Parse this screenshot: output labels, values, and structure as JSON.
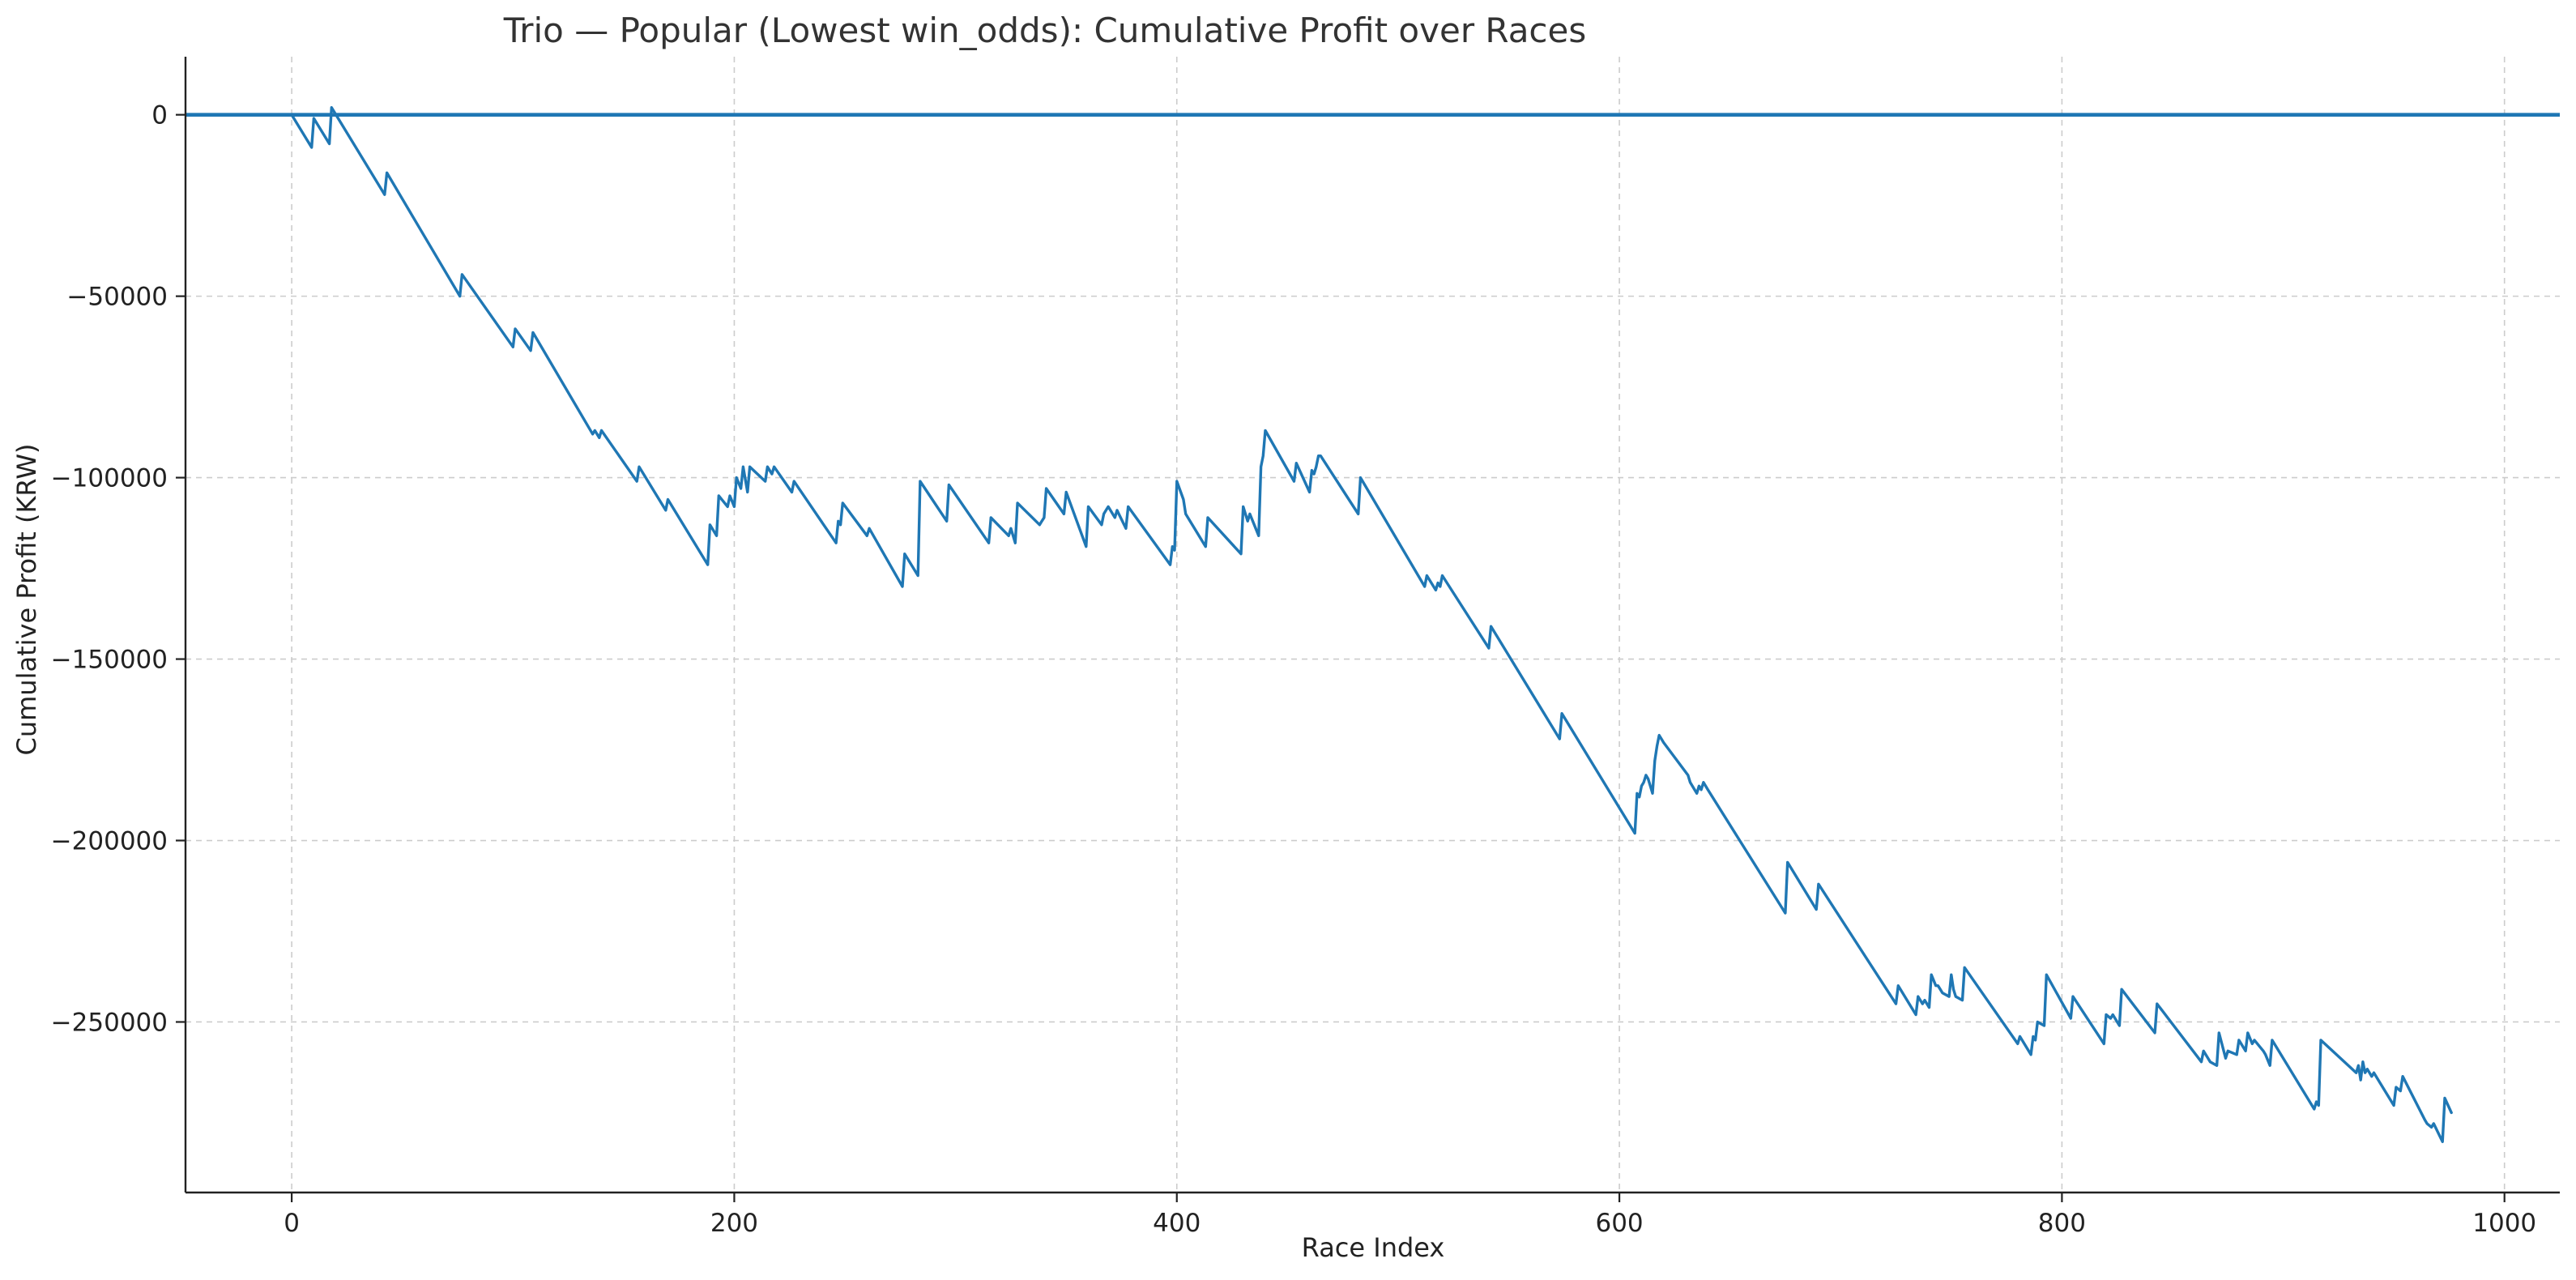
{
  "chart_data": {
    "type": "line",
    "title": "Trio — Popular (Lowest win_odds): Cumulative Profit over Races",
    "xlabel": "Race Index",
    "ylabel": "Cumulative Profit (KRW)",
    "xlim": [
      -48,
      1025
    ],
    "ylim": [
      -297000,
      16000
    ],
    "xticks": [
      0,
      200,
      400,
      600,
      800,
      1000
    ],
    "yticks": [
      0,
      -50000,
      -100000,
      -150000,
      -200000,
      -250000
    ],
    "grid": true,
    "legend": "none",
    "line_color": "#1f77b4",
    "reference_line": {
      "y": 0,
      "color": "#1f77b4"
    },
    "series": [
      {
        "x": [
          0,
          9,
          10,
          17,
          18,
          42,
          43,
          76,
          77,
          100,
          101,
          108,
          109,
          136,
          137,
          139,
          140,
          156,
          157,
          169,
          170,
          188,
          189,
          192,
          193,
          197,
          198,
          200,
          201,
          203,
          204,
          206,
          207,
          214,
          215,
          217,
          218,
          226,
          227,
          246,
          247,
          248,
          249,
          260,
          261,
          276,
          277,
          283,
          284,
          296,
          297,
          315,
          316,
          324,
          325,
          327,
          328,
          338,
          339,
          340,
          341,
          349,
          350,
          359,
          360,
          366,
          367,
          368,
          369,
          372,
          373,
          377,
          378,
          397,
          398,
          399,
          400,
          403,
          404,
          413,
          414,
          429,
          430,
          432,
          433,
          437,
          438,
          439,
          440,
          453,
          454,
          460,
          461,
          462,
          463,
          464,
          465,
          482,
          483,
          512,
          513,
          517,
          518,
          519,
          520,
          541,
          542,
          573,
          574,
          607,
          608,
          609,
          610,
          611,
          612,
          613,
          614,
          615,
          616,
          617,
          618,
          619,
          620,
          631,
          632,
          633,
          634,
          635,
          636,
          637,
          638,
          639,
          640,
          675,
          676,
          689,
          690,
          725,
          726,
          734,
          735,
          737,
          738,
          740,
          741,
          743,
          744,
          745,
          746,
          749,
          750,
          751,
          752,
          755,
          756,
          780,
          781,
          786,
          787,
          788,
          789,
          792,
          793,
          804,
          805,
          819,
          820,
          822,
          823,
          826,
          827,
          842,
          843,
          863,
          864,
          866,
          867,
          870,
          871,
          874,
          875,
          879,
          880,
          883,
          884,
          886,
          887,
          891,
          892,
          894,
          895,
          914,
          915,
          916,
          917,
          933,
          934,
          935,
          936,
          937,
          938,
          940,
          941,
          950,
          951,
          953,
          954,
          964,
          965,
          967,
          968,
          972,
          973,
          976
        ],
        "y": [
          0,
          -9000,
          -1000,
          -8000,
          2000,
          -22000,
          -16000,
          -50000,
          -44000,
          -64000,
          -59000,
          -65000,
          -60000,
          -88000,
          -87000,
          -89000,
          -87000,
          -101000,
          -97000,
          -109000,
          -106000,
          -124000,
          -113000,
          -116000,
          -105000,
          -108000,
          -105000,
          -108000,
          -100000,
          -103000,
          -97000,
          -104000,
          -97000,
          -101000,
          -97000,
          -99000,
          -97000,
          -104000,
          -101000,
          -118000,
          -112000,
          -113000,
          -107000,
          -116000,
          -114000,
          -130000,
          -121000,
          -127000,
          -101000,
          -112000,
          -102000,
          -118000,
          -111000,
          -116000,
          -114000,
          -118000,
          -107000,
          -113000,
          -112000,
          -111000,
          -103000,
          -110000,
          -104000,
          -119000,
          -108000,
          -113000,
          -110000,
          -109000,
          -108000,
          -111000,
          -109000,
          -114000,
          -108000,
          -124000,
          -119000,
          -120000,
          -101000,
          -106000,
          -110000,
          -119000,
          -111000,
          -121000,
          -108000,
          -112000,
          -110000,
          -116000,
          -97000,
          -94000,
          -87000,
          -101000,
          -96000,
          -104000,
          -98000,
          -99000,
          -97000,
          -94000,
          -94000,
          -110000,
          -100000,
          -130000,
          -127000,
          -131000,
          -129000,
          -130000,
          -127000,
          -147000,
          -141000,
          -172000,
          -165000,
          -198000,
          -187000,
          -188000,
          -185000,
          -184000,
          -182000,
          -183000,
          -185000,
          -187000,
          -178000,
          -174000,
          -171000,
          -172000,
          -173000,
          -182000,
          -184000,
          -185000,
          -186000,
          -187000,
          -185000,
          -186000,
          -184000,
          -185000,
          -186000,
          -220000,
          -206000,
          -219000,
          -212000,
          -245000,
          -240000,
          -248000,
          -243000,
          -245000,
          -244000,
          -246000,
          -237000,
          -240000,
          -240000,
          -241000,
          -242000,
          -243000,
          -237000,
          -241000,
          -243000,
          -244000,
          -235000,
          -256000,
          -254000,
          -259000,
          -254000,
          -255000,
          -250000,
          -251000,
          -237000,
          -249000,
          -243000,
          -256000,
          -248000,
          -249000,
          -248000,
          -251000,
          -241000,
          -253000,
          -245000,
          -261000,
          -258000,
          -260000,
          -261000,
          -262000,
          -253000,
          -260000,
          -258000,
          -259000,
          -255000,
          -258000,
          -253000,
          -256000,
          -255000,
          -258000,
          -259000,
          -262000,
          -255000,
          -274000,
          -272000,
          -273000,
          -255000,
          -264000,
          -262000,
          -266000,
          -261000,
          -264000,
          -263000,
          -265000,
          -264000,
          -273000,
          -268000,
          -269000,
          -265000,
          -277000,
          -278000,
          -279000,
          -278000,
          -283000,
          -271000,
          -275000
        ]
      }
    ]
  }
}
